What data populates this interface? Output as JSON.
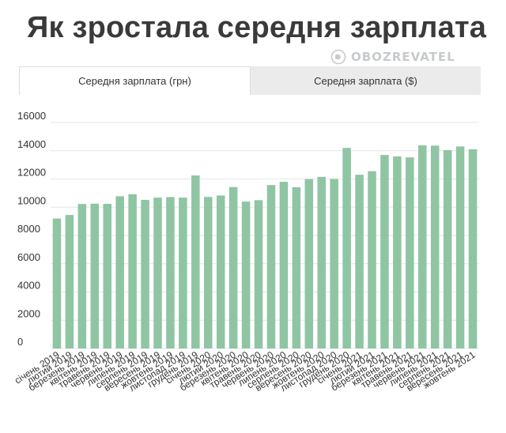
{
  "title": "Як зростала середня зарплата",
  "logo": {
    "text": "OBOZREVATEL",
    "icon": "globe-icon"
  },
  "tabs": [
    {
      "label": "Середня зарплата (грн)",
      "active": true
    },
    {
      "label": "Середня зарплата ($)",
      "active": false
    }
  ],
  "colors": {
    "bar": "#8fc5a3",
    "grid": "#e6e6e6"
  },
  "chart_data": {
    "type": "bar",
    "title": "",
    "xlabel": "",
    "ylabel": "",
    "ylim": [
      0,
      16000
    ],
    "yticks": [
      0,
      2000,
      4000,
      6000,
      8000,
      10000,
      12000,
      14000,
      16000
    ],
    "grid": true,
    "categories": [
      "січень 2019",
      "лютий 2019",
      "березень 2019",
      "квітень 2019",
      "травень 2019",
      "червень 2019",
      "липень 2019",
      "серпень 2019",
      "вересень 2019",
      "жовтень 2019",
      "листопад 2019",
      "грудень 2019",
      "січень 2020",
      "лютий 2020",
      "березень 2020",
      "квітень 2020",
      "травень 2020",
      "червень 2020",
      "липень 2020",
      "серпень 2020",
      "вересень 2020",
      "жовтень 2020",
      "листопад 2020",
      "грудень 2020",
      "січень 2021",
      "лютий 2021",
      "березень 2021",
      "квітень 2021",
      "травень 2021",
      "червень 2021",
      "липень 2021",
      "серпень 2021",
      "вересень 2021",
      "жовтень 2021"
    ],
    "values": [
      9200,
      9450,
      10230,
      10250,
      10240,
      10780,
      10920,
      10520,
      10680,
      10720,
      10680,
      12250,
      10730,
      10830,
      11430,
      10400,
      10500,
      11570,
      11800,
      11420,
      11990,
      12150,
      12000,
      14200,
      12300,
      12550,
      13700,
      13600,
      13530,
      14380,
      14360,
      14050,
      14300,
      14100
    ]
  }
}
